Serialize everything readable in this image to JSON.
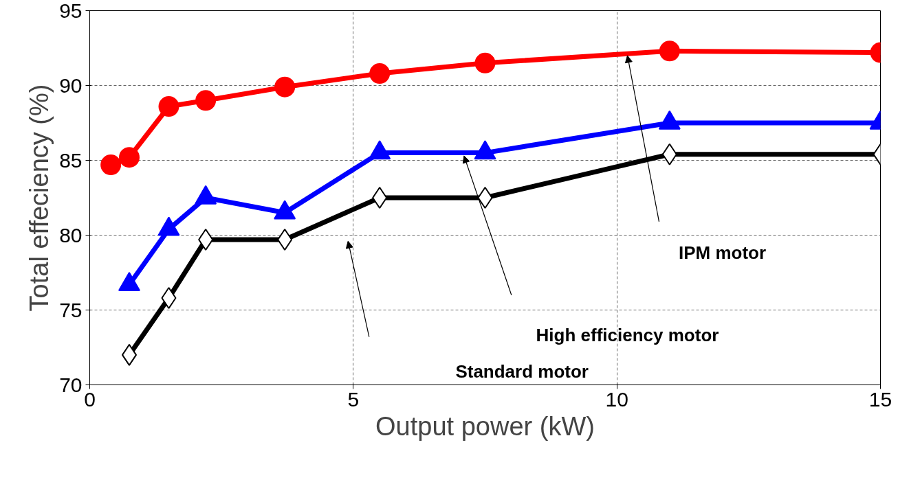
{
  "chart_data": {
    "type": "line",
    "xlabel": "Output power (kW)",
    "ylabel": "Total effeciency (%)",
    "xlim": [
      0,
      15
    ],
    "ylim": [
      70,
      95
    ],
    "xticks": [
      0,
      5,
      10,
      15
    ],
    "yticks": [
      70,
      75,
      80,
      85,
      90,
      95
    ],
    "grid": true,
    "line_style": "solid",
    "series": [
      {
        "color": "#ff0000",
        "marker": "circle",
        "x": [
          0.4,
          0.75,
          1.5,
          2.2,
          3.7,
          5.5,
          7.5,
          11,
          15
        ],
        "values": [
          84.7,
          85.2,
          88.6,
          89.0,
          89.9,
          90.8,
          91.5,
          92.3,
          92.2
        ]
      },
      {
        "color": "#0000ff",
        "marker": "triangle",
        "x": [
          0.75,
          1.5,
          2.2,
          3.7,
          5.5,
          7.5,
          11,
          15
        ],
        "values": [
          76.7,
          80.4,
          82.5,
          81.5,
          85.5,
          85.5,
          87.5,
          87.5
        ]
      },
      {
        "color": "#000000",
        "marker": "diamond",
        "x": [
          0.75,
          1.5,
          2.2,
          3.7,
          5.5,
          7.5,
          11,
          15
        ],
        "values": [
          72.0,
          75.8,
          79.7,
          79.7,
          82.5,
          82.5,
          85.4,
          85.4
        ]
      }
    ],
    "annotations": [
      "IPM motor",
      "High efficiency motor",
      "Standard motor"
    ]
  }
}
